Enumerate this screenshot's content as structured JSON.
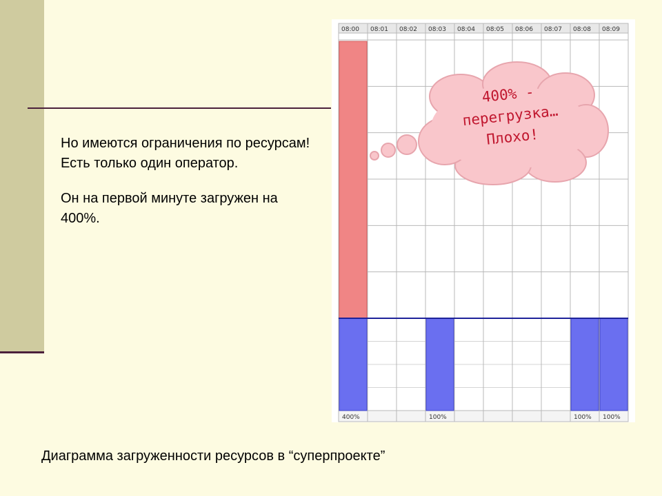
{
  "slide": {
    "paragraphs": [
      "Но имеются ограничения по ресурсам! Есть только один оператор.",
      "Он на первой минуте загружен на 400%."
    ],
    "caption": "Диаграмма загруженности ресурсов в “суперпроекте”",
    "bubble_lines": [
      "400% -",
      "перегрузка…",
      "Плохо!"
    ]
  },
  "chart_data": {
    "type": "bar",
    "title": "",
    "categories": [
      "08:00",
      "08:01",
      "08:02",
      "08:03",
      "08:04",
      "08:05",
      "08:06",
      "08:07",
      "08:08",
      "08:09"
    ],
    "values": [
      400,
      0,
      0,
      100,
      0,
      0,
      0,
      0,
      100,
      100
    ],
    "value_labels": [
      "400%",
      "",
      "",
      "100%",
      "",
      "",
      "",
      "",
      "100%",
      "100%"
    ],
    "capacity": 100,
    "ylim": [
      0,
      400
    ],
    "grid": true,
    "colors": {
      "within": "#6a6ff0",
      "overload": "#f08585",
      "grid": "#b8b8b8",
      "header_bg": "#e8e8e8"
    }
  }
}
